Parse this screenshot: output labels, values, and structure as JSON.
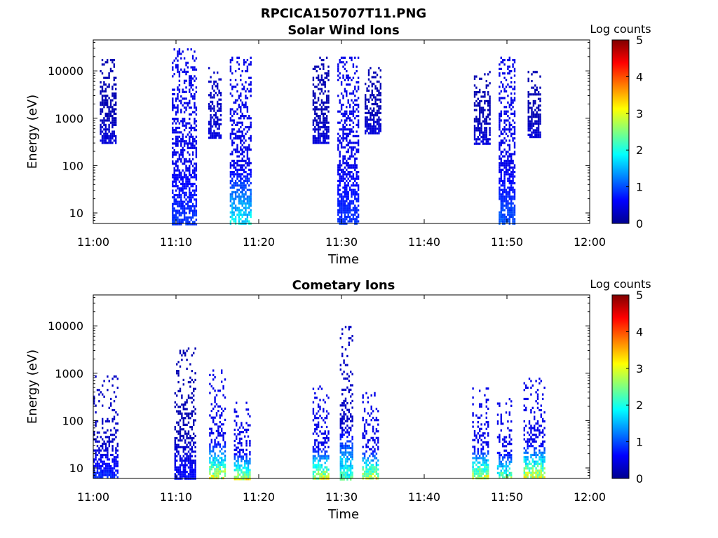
{
  "figure_title": "RPCICA150707T11.PNG",
  "chart_data": [
    {
      "type": "heatmap",
      "title": "Solar Wind Ions",
      "xlabel": "Time",
      "ylabel": "Energy (eV)",
      "x_ticks": [
        "11:00",
        "11:10",
        "11:20",
        "11:30",
        "11:40",
        "11:50",
        "12:00"
      ],
      "xlim": [
        "11:00",
        "12:00"
      ],
      "y_ticks": [
        10,
        100,
        1000,
        10000
      ],
      "y_tick_labels": [
        "10",
        "100",
        "1000",
        "10000"
      ],
      "ylim": [
        6,
        45000
      ],
      "y_scale": "log",
      "colorbar": {
        "title": "Log counts",
        "range": [
          0,
          5
        ],
        "ticks": [
          "0",
          "1",
          "2",
          "3",
          "4",
          "5"
        ],
        "colormap": "jet"
      },
      "bursts": [
        {
          "t_start": "11:00:48",
          "t_end": "11:02:48",
          "e_min": 300,
          "e_max": 20000,
          "peak_log_counts": 0.5,
          "low_log_counts": 0.2
        },
        {
          "t_start": "11:09:30",
          "t_end": "11:12:30",
          "e_min": 6,
          "e_max": 30000,
          "peak_log_counts": 1.0,
          "low_log_counts": 0.5
        },
        {
          "t_start": "11:13:54",
          "t_end": "11:15:24",
          "e_min": 400,
          "e_max": 12000,
          "peak_log_counts": 0.5,
          "low_log_counts": 0.3
        },
        {
          "t_start": "11:16:30",
          "t_end": "11:19:00",
          "e_min": 6,
          "e_max": 20000,
          "peak_log_counts": 2.2,
          "low_log_counts": 0.5
        },
        {
          "t_start": "11:26:30",
          "t_end": "11:28:30",
          "e_min": 300,
          "e_max": 20000,
          "peak_log_counts": 0.5,
          "low_log_counts": 0.2
        },
        {
          "t_start": "11:29:30",
          "t_end": "11:32:00",
          "e_min": 6,
          "e_max": 20000,
          "peak_log_counts": 1.0,
          "low_log_counts": 0.5
        },
        {
          "t_start": "11:32:48",
          "t_end": "11:34:48",
          "e_min": 500,
          "e_max": 12000,
          "peak_log_counts": 0.5,
          "low_log_counts": 0.2
        },
        {
          "t_start": "11:46:00",
          "t_end": "11:48:00",
          "e_min": 300,
          "e_max": 10000,
          "peak_log_counts": 0.5,
          "low_log_counts": 0.2
        },
        {
          "t_start": "11:49:00",
          "t_end": "11:51:00",
          "e_min": 6,
          "e_max": 20000,
          "peak_log_counts": 1.2,
          "low_log_counts": 0.5
        },
        {
          "t_start": "11:52:30",
          "t_end": "11:54:00",
          "e_min": 400,
          "e_max": 10000,
          "peak_log_counts": 0.5,
          "low_log_counts": 0.2
        }
      ]
    },
    {
      "type": "heatmap",
      "title": "Cometary Ions",
      "xlabel": "Time",
      "ylabel": "Energy (eV)",
      "x_ticks": [
        "11:00",
        "11:10",
        "11:20",
        "11:30",
        "11:40",
        "11:50",
        "12:00"
      ],
      "xlim": [
        "11:00",
        "12:00"
      ],
      "y_ticks": [
        10,
        100,
        1000,
        10000
      ],
      "y_tick_labels": [
        "10",
        "100",
        "1000",
        "10000"
      ],
      "ylim": [
        6,
        45000
      ],
      "y_scale": "log",
      "colorbar": {
        "title": "Log counts",
        "range": [
          0,
          5
        ],
        "ticks": [
          "0",
          "1",
          "2",
          "3",
          "4",
          "5"
        ],
        "colormap": "jet"
      },
      "bursts": [
        {
          "t_start": "11:00:00",
          "t_end": "11:03:00",
          "e_min": 6,
          "e_max": 900,
          "peak_log_counts": 1.0,
          "low_log_counts": 0.3
        },
        {
          "t_start": "11:09:48",
          "t_end": "11:12:18",
          "e_min": 6,
          "e_max": 3500,
          "peak_log_counts": 0.8,
          "low_log_counts": 0.2
        },
        {
          "t_start": "11:14:00",
          "t_end": "11:16:00",
          "e_min": 6,
          "e_max": 1200,
          "peak_log_counts": 3.6,
          "low_log_counts": 0.5
        },
        {
          "t_start": "11:17:00",
          "t_end": "11:19:00",
          "e_min": 6,
          "e_max": 250,
          "peak_log_counts": 3.5,
          "low_log_counts": 0.5
        },
        {
          "t_start": "11:26:30",
          "t_end": "11:28:30",
          "e_min": 6,
          "e_max": 550,
          "peak_log_counts": 3.5,
          "low_log_counts": 0.5
        },
        {
          "t_start": "11:29:48",
          "t_end": "11:31:18",
          "e_min": 6,
          "e_max": 10000,
          "peak_log_counts": 2.7,
          "low_log_counts": 0.3
        },
        {
          "t_start": "11:32:30",
          "t_end": "11:34:30",
          "e_min": 6,
          "e_max": 400,
          "peak_log_counts": 3.6,
          "low_log_counts": 0.5
        },
        {
          "t_start": "11:45:48",
          "t_end": "11:47:48",
          "e_min": 6,
          "e_max": 500,
          "peak_log_counts": 3.6,
          "low_log_counts": 0.5
        },
        {
          "t_start": "11:48:48",
          "t_end": "11:50:30",
          "e_min": 6,
          "e_max": 300,
          "peak_log_counts": 3.0,
          "low_log_counts": 0.5
        },
        {
          "t_start": "11:52:00",
          "t_end": "11:54:30",
          "e_min": 6,
          "e_max": 900,
          "peak_log_counts": 3.7,
          "low_log_counts": 0.5
        }
      ]
    }
  ]
}
